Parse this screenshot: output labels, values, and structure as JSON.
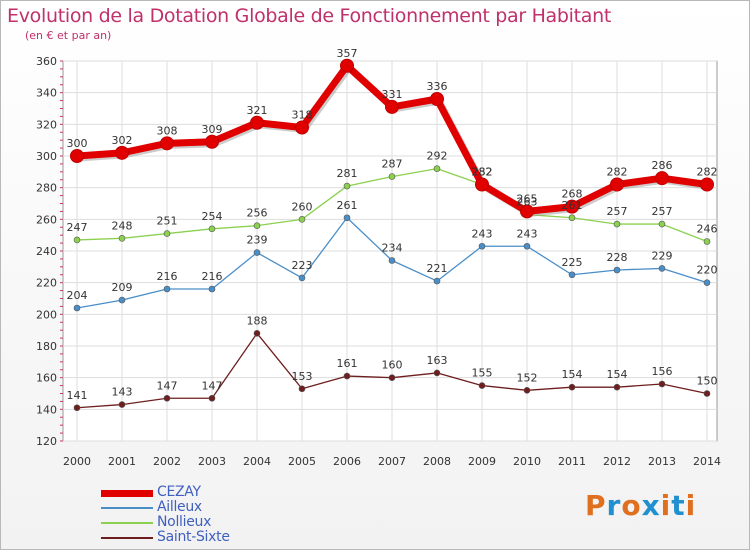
{
  "title": "Evolution de la Dotation Globale de Fonctionnement par Habitant",
  "subtitle": "(en € et par an)",
  "logo_text": "Proxiti",
  "logo_colors": [
    "#e07020",
    "#2090d0",
    "#e07020",
    "#2090d0",
    "#e07020",
    "#2090d0",
    "#e07020"
  ],
  "chart_data": {
    "type": "line",
    "title": "Evolution de la Dotation Globale de Fonctionnement par Habitant",
    "subtitle": "(en € et par an)",
    "x": [
      "2000",
      "2001",
      "2002",
      "2003",
      "2004",
      "2005",
      "2006",
      "2007",
      "2008",
      "2009",
      "2010",
      "2011",
      "2012",
      "2013",
      "2014"
    ],
    "ylim": [
      120,
      360
    ],
    "yticks": [
      120,
      140,
      160,
      180,
      200,
      220,
      240,
      260,
      280,
      300,
      320,
      340,
      360
    ],
    "grid": true,
    "legend_position": "bottom-left",
    "series": [
      {
        "name": "CEZAY",
        "color": "#e00000",
        "emphasis": true,
        "values": [
          300,
          302,
          308,
          309,
          321,
          318,
          357,
          331,
          336,
          282,
          265,
          268,
          282,
          286,
          282
        ]
      },
      {
        "name": "Ailleux",
        "color": "#4a8ec8",
        "emphasis": false,
        "values": [
          204,
          209,
          216,
          216,
          239,
          223,
          261,
          234,
          221,
          243,
          243,
          225,
          228,
          229,
          220
        ]
      },
      {
        "name": "Nollieux",
        "color": "#8cd050",
        "emphasis": false,
        "values": [
          247,
          248,
          251,
          254,
          256,
          260,
          281,
          287,
          292,
          282,
          263,
          261,
          257,
          257,
          246
        ]
      },
      {
        "name": "Saint-Sixte",
        "color": "#6e1e1e",
        "emphasis": false,
        "values": [
          141,
          143,
          147,
          147,
          188,
          153,
          161,
          160,
          163,
          155,
          152,
          154,
          154,
          156,
          150
        ]
      }
    ]
  }
}
